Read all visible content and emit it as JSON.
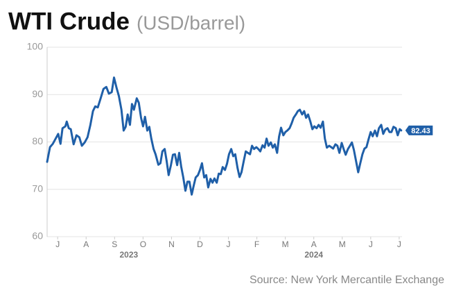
{
  "chart_data": {
    "type": "line",
    "title": "WTI Crude",
    "subtitle": "(USD/barrel)",
    "source": "Source: New York Mercantile Exchange",
    "x": [
      0.13,
      0.23,
      0.33,
      0.43,
      0.52,
      0.6,
      0.67,
      0.77,
      0.82,
      0.89,
      0.96,
      1.06,
      1.16,
      1.26,
      1.35,
      1.45,
      1.55,
      1.65,
      1.74,
      1.82,
      1.91,
      2.01,
      2.11,
      2.21,
      2.3,
      2.4,
      2.48,
      2.57,
      2.65,
      2.74,
      2.82,
      2.89,
      2.96,
      3.04,
      3.11,
      3.18,
      3.28,
      3.35,
      3.43,
      3.5,
      3.57,
      3.65,
      3.72,
      3.79,
      3.87,
      3.94,
      4.04,
      4.11,
      4.18,
      4.26,
      4.33,
      4.4,
      4.48,
      4.55,
      4.62,
      4.7,
      4.77,
      4.84,
      4.91,
      4.99,
      5.06,
      5.13,
      5.21,
      5.28,
      5.35,
      5.43,
      5.5,
      5.57,
      5.65,
      5.72,
      5.79,
      5.87,
      5.94,
      6.01,
      6.09,
      6.16,
      6.23,
      6.3,
      6.38,
      6.45,
      6.52,
      6.6,
      6.67,
      6.74,
      6.82,
      6.89,
      6.96,
      7.04,
      7.11,
      7.18,
      7.26,
      7.33,
      7.4,
      7.48,
      7.55,
      7.62,
      7.7,
      7.77,
      7.84,
      7.91,
      7.99,
      8.06,
      8.13,
      8.21,
      8.28,
      8.35,
      8.43,
      8.5,
      8.57,
      8.65,
      8.72,
      8.79,
      8.87,
      8.94,
      9.01,
      9.09,
      9.16,
      9.23,
      9.3,
      9.38,
      9.45,
      9.52,
      9.6,
      9.67,
      9.74,
      9.82,
      9.89,
      9.96,
      10.04,
      10.11,
      10.18,
      10.26,
      10.33,
      10.4,
      10.48,
      10.55,
      10.62,
      10.7,
      10.77,
      10.84,
      10.91,
      10.99,
      11.06,
      11.13,
      11.21,
      11.28,
      11.35,
      11.43,
      11.5,
      11.57,
      11.65,
      11.72,
      11.79,
      11.87,
      11.94,
      12.01,
      12.09,
      12.16,
      12.23,
      12.3,
      12.38,
      12.45,
      12.52,
      12.57
    ],
    "series": [
      {
        "name": "WTI Crude",
        "color": "#1f5fa8",
        "values": [
          75.8,
          78.9,
          79.6,
          80.7,
          81.7,
          79.6,
          82.9,
          83.3,
          84.3,
          82.9,
          82.7,
          79.5,
          81.4,
          81.0,
          79.2,
          79.9,
          81.0,
          83.6,
          86.5,
          87.5,
          87.3,
          89.2,
          91.2,
          91.6,
          90.2,
          90.5,
          93.6,
          91.4,
          89.7,
          86.8,
          82.4,
          83.2,
          85.8,
          83.6,
          88.0,
          86.8,
          89.2,
          88.3,
          85.1,
          83.3,
          85.3,
          82.4,
          83.2,
          80.7,
          78.5,
          77.4,
          75.2,
          75.5,
          78.0,
          78.5,
          76.0,
          73.0,
          75.1,
          77.3,
          77.4,
          75.1,
          77.7,
          74.8,
          72.6,
          69.7,
          71.6,
          71.6,
          68.9,
          70.8,
          72.5,
          73.0,
          74.1,
          75.5,
          72.5,
          73.0,
          70.4,
          72.2,
          71.4,
          72.3,
          71.4,
          73.3,
          73.2,
          74.7,
          74.1,
          75.4,
          77.4,
          78.5,
          77.0,
          77.4,
          74.5,
          72.6,
          73.6,
          76.0,
          78.0,
          77.7,
          77.4,
          79.2,
          78.5,
          78.9,
          78.5,
          78.0,
          79.3,
          78.8,
          80.7,
          79.2,
          79.9,
          78.8,
          79.5,
          77.7,
          81.1,
          83.0,
          81.4,
          82.1,
          82.4,
          82.9,
          83.9,
          85.1,
          85.8,
          86.5,
          86.8,
          85.8,
          86.5,
          85.1,
          85.8,
          84.3,
          82.7,
          83.3,
          82.9,
          83.6,
          83.0,
          84.3,
          80.7,
          78.8,
          79.2,
          78.9,
          78.6,
          79.5,
          79.2,
          77.7,
          79.8,
          78.5,
          77.3,
          78.5,
          79.2,
          79.9,
          78.3,
          75.8,
          73.6,
          75.4,
          77.4,
          78.6,
          78.9,
          80.7,
          82.1,
          81.2,
          82.4,
          81.2,
          82.9,
          83.6,
          81.7,
          82.6,
          82.9,
          82.1,
          82.1,
          83.2,
          82.9,
          81.4,
          82.7,
          82.43
        ]
      }
    ],
    "xlim": [
      0.13,
      12.6
    ],
    "xticks": [
      {
        "value": 0.5,
        "label": "J"
      },
      {
        "value": 1.5,
        "label": "A"
      },
      {
        "value": 2.5,
        "label": "S"
      },
      {
        "value": 3.5,
        "label": "O"
      },
      {
        "value": 4.5,
        "label": "N"
      },
      {
        "value": 5.5,
        "label": "D"
      },
      {
        "value": 6.5,
        "label": "J"
      },
      {
        "value": 7.5,
        "label": "F"
      },
      {
        "value": 8.5,
        "label": "M"
      },
      {
        "value": 9.5,
        "label": "A"
      },
      {
        "value": 10.5,
        "label": "M"
      },
      {
        "value": 11.5,
        "label": "J"
      },
      {
        "value": 12.5,
        "label": "J"
      }
    ],
    "year_labels": [
      {
        "value": 3.0,
        "label": "2023"
      },
      {
        "value": 9.5,
        "label": "2024"
      }
    ],
    "ylim": [
      60,
      100
    ],
    "yticks": [
      60,
      70,
      80,
      90,
      100
    ],
    "grid": true,
    "end_label": true
  }
}
